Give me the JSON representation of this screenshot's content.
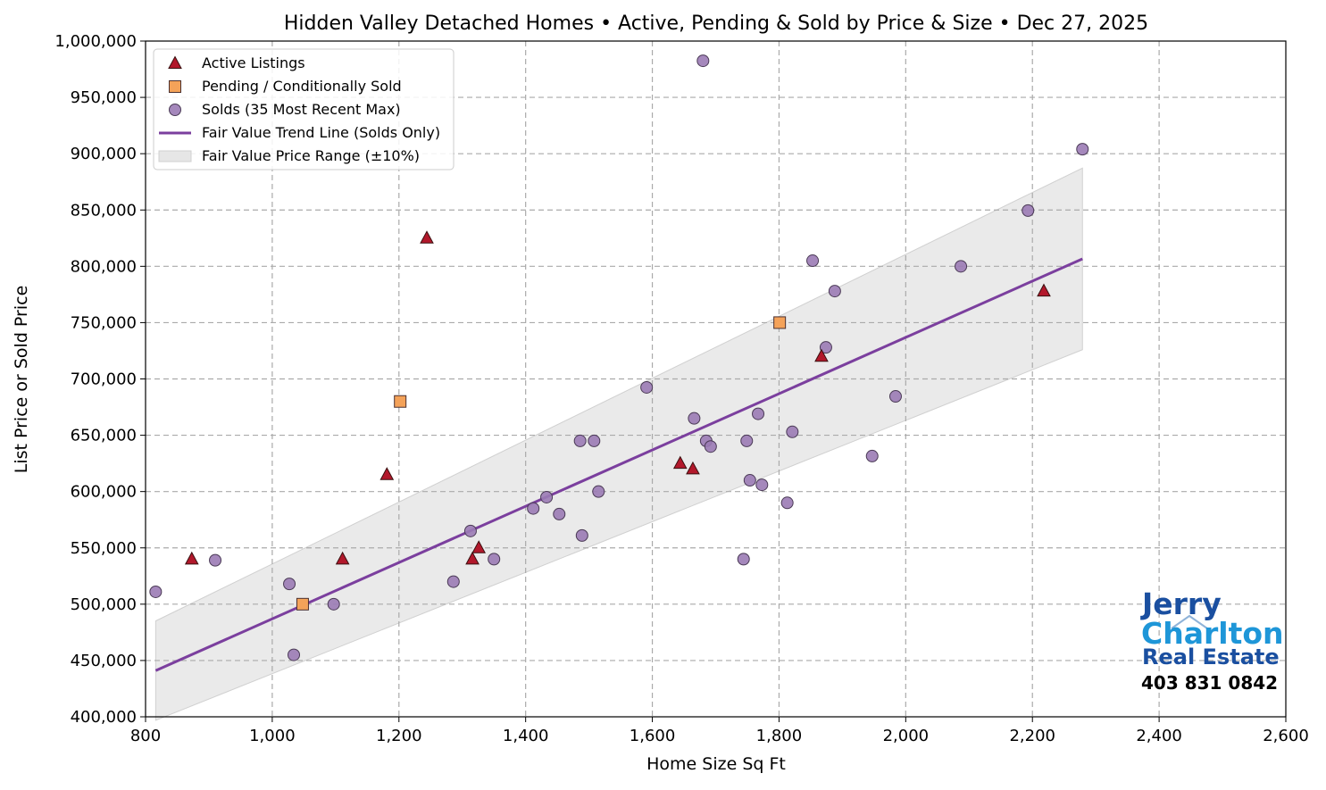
{
  "chart_data": {
    "type": "scatter",
    "title": "Hidden Valley Detached Homes • Active, Pending & Sold by Price & Size • Dec 27, 2025",
    "xlabel": "Home Size Sq Ft",
    "ylabel": "List Price or Sold Price",
    "xlim": [
      800,
      2600
    ],
    "ylim": [
      400000,
      1000000
    ],
    "xticks": [
      800,
      1000,
      1200,
      1400,
      1600,
      1800,
      2000,
      2200,
      2400,
      2600
    ],
    "xtick_labels": [
      "800",
      "1,000",
      "1,200",
      "1,400",
      "1,600",
      "1,800",
      "2,000",
      "2,200",
      "2,400",
      "2,600"
    ],
    "yticks": [
      400000,
      450000,
      500000,
      550000,
      600000,
      650000,
      700000,
      750000,
      800000,
      850000,
      900000,
      950000,
      1000000
    ],
    "ytick_labels": [
      "400,000",
      "450,000",
      "500,000",
      "550,000",
      "600,000",
      "650,000",
      "700,000",
      "750,000",
      "800,000",
      "850,000",
      "900,000",
      "950,000",
      "1,000,000"
    ],
    "grid": true,
    "legend_position": "top-left",
    "series": [
      {
        "name": "Active Listings",
        "marker": "triangle",
        "color": "#b2182b",
        "points": [
          [
            873,
            540000
          ],
          [
            1111,
            540000
          ],
          [
            1181,
            615000
          ],
          [
            1244,
            825000
          ],
          [
            1316,
            540000
          ],
          [
            1326,
            550000
          ],
          [
            1644,
            625000
          ],
          [
            1664,
            620000
          ],
          [
            1867,
            720000
          ],
          [
            2218,
            778000
          ]
        ]
      },
      {
        "name": "Pending / Conditionally Sold",
        "marker": "square",
        "color": "#f4a259",
        "points": [
          [
            1048,
            500000
          ],
          [
            1202,
            680000
          ],
          [
            1801,
            750000
          ]
        ]
      },
      {
        "name": "Solds (35 Most Recent Max)",
        "marker": "circle",
        "color": "#9b7bb5",
        "points": [
          [
            816,
            511000
          ],
          [
            910,
            539000
          ],
          [
            1027,
            518000
          ],
          [
            1034,
            455000
          ],
          [
            1097,
            500000
          ],
          [
            1286,
            520000
          ],
          [
            1313,
            565000
          ],
          [
            1350,
            540000
          ],
          [
            1412,
            585000
          ],
          [
            1433,
            595000
          ],
          [
            1453,
            580000
          ],
          [
            1486,
            645000
          ],
          [
            1489,
            561000
          ],
          [
            1508,
            645000
          ],
          [
            1515,
            600000
          ],
          [
            1591,
            692500
          ],
          [
            1666,
            665000
          ],
          [
            1680,
            982500
          ],
          [
            1685,
            645000
          ],
          [
            1692,
            640000
          ],
          [
            1744,
            540000
          ],
          [
            1749,
            645000
          ],
          [
            1754,
            610000
          ],
          [
            1767,
            669000
          ],
          [
            1773,
            606000
          ],
          [
            1813,
            590000
          ],
          [
            1821,
            653000
          ],
          [
            1853,
            805000
          ],
          [
            1874,
            728000
          ],
          [
            1888,
            778000
          ],
          [
            1947,
            631500
          ],
          [
            1984,
            684500
          ],
          [
            2087,
            800000
          ],
          [
            2193,
            849500
          ],
          [
            2279,
            904000
          ]
        ]
      },
      {
        "name": "Fair Value Trend Line (Solds Only)",
        "type": "line",
        "color": "#7b3f9e",
        "points": [
          [
            816,
            441000
          ],
          [
            2279,
            806600
          ]
        ]
      },
      {
        "name": "Fair Value Price Range (±10%)",
        "type": "band",
        "color": "#e6e6e6",
        "band_pct": 10
      }
    ]
  },
  "logo": {
    "line1": "Jerry",
    "line2": "Charlton",
    "line3": "Real Estate",
    "phone": "403 831 0842"
  }
}
